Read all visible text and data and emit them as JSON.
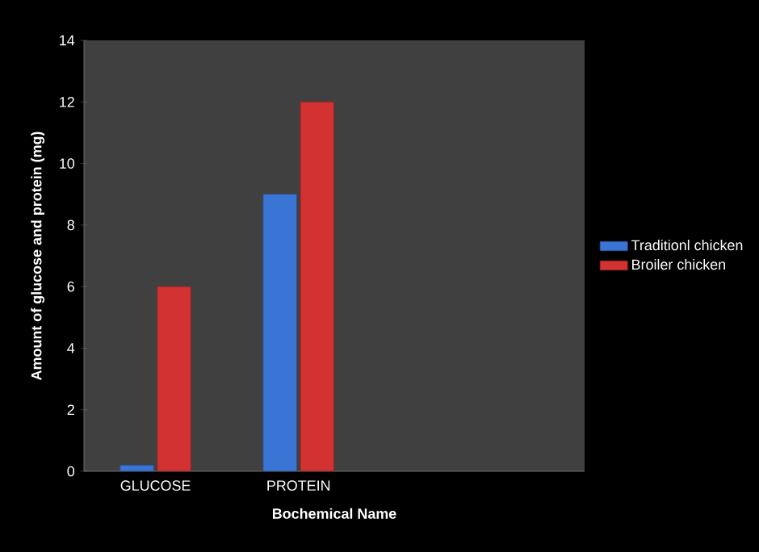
{
  "chart_data": {
    "type": "bar",
    "xlabel": "Bochemical Name",
    "ylabel": "Amount of glucose  and  protein (mg)",
    "categories": [
      "GLUCOSE",
      "PROTEIN"
    ],
    "series": [
      {
        "name": "Traditionl chicken",
        "color": "#3a75d6",
        "values": [
          0.2,
          9
        ]
      },
      {
        "name": "Broiler chicken",
        "color": "#d23232",
        "values": [
          6,
          12
        ]
      }
    ],
    "ylim": [
      0,
      14
    ],
    "yticks": [
      0,
      2,
      4,
      6,
      8,
      10,
      12,
      14
    ],
    "grid": false,
    "legend": "right"
  }
}
